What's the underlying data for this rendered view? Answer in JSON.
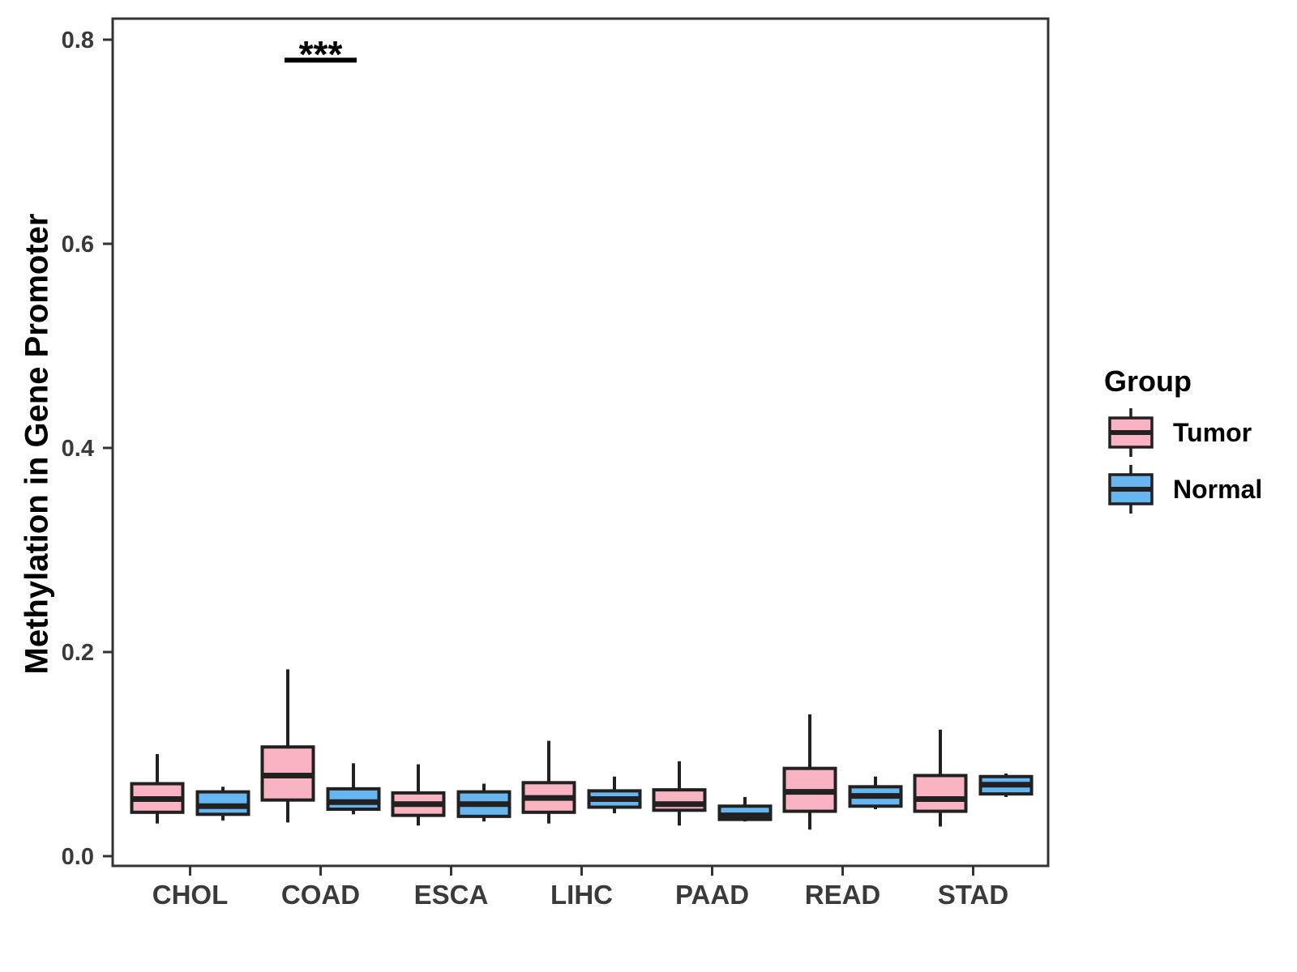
{
  "style": {
    "background": "#FFFFFF",
    "axis_color": "#333333",
    "tick_label_color": "#3A3A3A",
    "box_border": "#212121",
    "text_color": "#000000"
  },
  "chart_data": {
    "type": "boxplot",
    "title": "",
    "xlabel": "",
    "ylabel": "Methylation in Gene Promoter",
    "grid": false,
    "ylim": [
      -0.01,
      0.82
    ],
    "yticks": [
      "0.0",
      "0.2",
      "0.4",
      "0.6",
      "0.8"
    ],
    "ytick_values": [
      0.0,
      0.2,
      0.4,
      0.6,
      0.8
    ],
    "categories": [
      "CHOL",
      "COAD",
      "ESCA",
      "LIHC",
      "PAAD",
      "READ",
      "STAD"
    ],
    "series": [
      {
        "name": "Tumor",
        "color": "#F9B3C3",
        "boxes": [
          {
            "min": 0.032,
            "q1": 0.043,
            "median": 0.056,
            "q3": 0.071,
            "max": 0.1
          },
          {
            "min": 0.033,
            "q1": 0.055,
            "median": 0.079,
            "q3": 0.107,
            "max": 0.183
          },
          {
            "min": 0.03,
            "q1": 0.04,
            "median": 0.051,
            "q3": 0.062,
            "max": 0.09
          },
          {
            "min": 0.032,
            "q1": 0.043,
            "median": 0.057,
            "q3": 0.072,
            "max": 0.113
          },
          {
            "min": 0.03,
            "q1": 0.045,
            "median": 0.051,
            "q3": 0.065,
            "max": 0.093
          },
          {
            "min": 0.026,
            "q1": 0.044,
            "median": 0.063,
            "q3": 0.086,
            "max": 0.139
          },
          {
            "min": 0.029,
            "q1": 0.044,
            "median": 0.056,
            "q3": 0.079,
            "max": 0.124
          }
        ]
      },
      {
        "name": "Normal",
        "color": "#68B6F0",
        "boxes": [
          {
            "min": 0.035,
            "q1": 0.041,
            "median": 0.049,
            "q3": 0.063,
            "max": 0.068
          },
          {
            "min": 0.041,
            "q1": 0.046,
            "median": 0.053,
            "q3": 0.066,
            "max": 0.091
          },
          {
            "min": 0.034,
            "q1": 0.039,
            "median": 0.051,
            "q3": 0.063,
            "max": 0.071
          },
          {
            "min": 0.042,
            "q1": 0.048,
            "median": 0.056,
            "q3": 0.064,
            "max": 0.078
          },
          {
            "min": 0.034,
            "q1": 0.036,
            "median": 0.04,
            "q3": 0.049,
            "max": 0.058
          },
          {
            "min": 0.046,
            "q1": 0.049,
            "median": 0.059,
            "q3": 0.068,
            "max": 0.078
          },
          {
            "min": 0.058,
            "q1": 0.061,
            "median": 0.07,
            "q3": 0.078,
            "max": 0.081
          }
        ]
      }
    ],
    "legend": {
      "title": "Group",
      "position": "right",
      "entries": [
        {
          "label": "Tumor",
          "color": "#F9B3C3"
        },
        {
          "label": "Normal",
          "color": "#68B6F0"
        }
      ]
    },
    "annotations": [
      {
        "label": "***",
        "category": "COAD",
        "y": 0.78
      }
    ]
  }
}
